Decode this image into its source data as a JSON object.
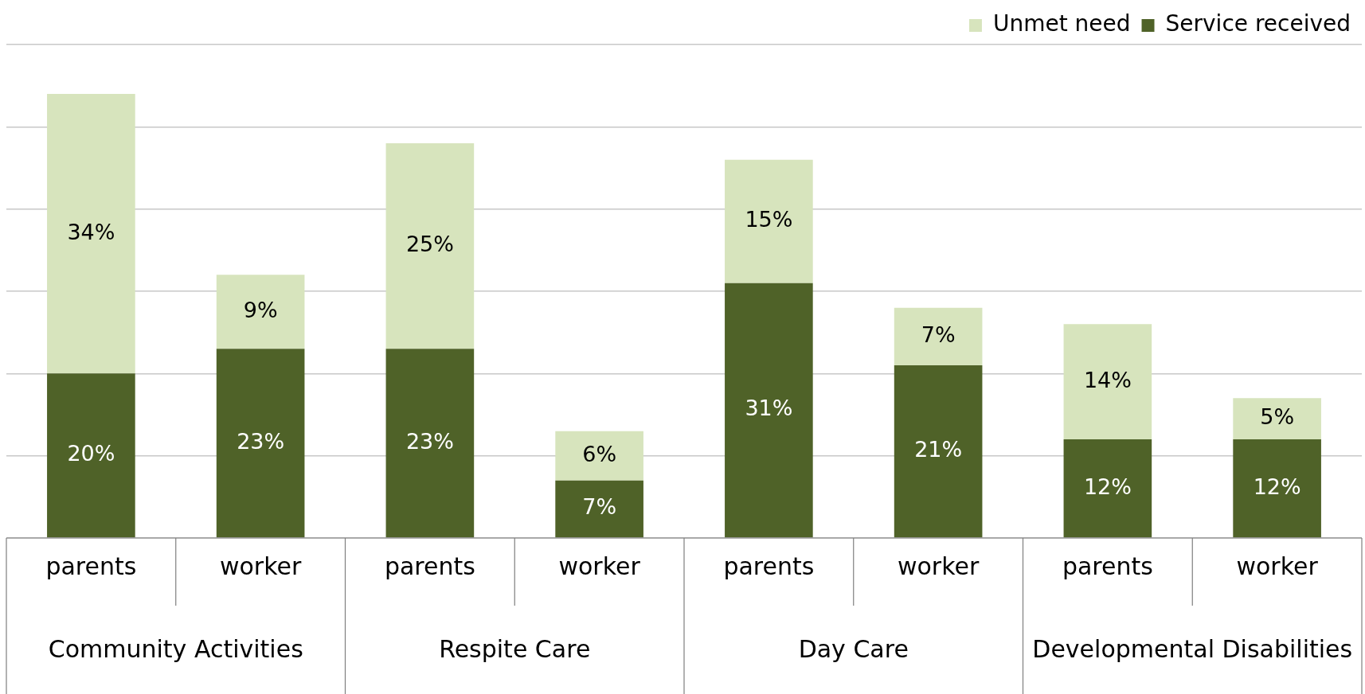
{
  "chart_data": {
    "type": "bar",
    "stacked": true,
    "categories": [
      "parents",
      "worker",
      "parents",
      "worker",
      "parents",
      "worker",
      "parents",
      "worker"
    ],
    "series": [
      {
        "name": "Service received",
        "color": "#4f6228",
        "values": [
          20,
          23,
          23,
          7,
          31,
          21,
          12,
          12
        ],
        "value_labels": [
          "20%",
          "23%",
          "23%",
          "7%",
          "31%",
          "21%",
          "12%",
          "12%"
        ]
      },
      {
        "name": "Unmet need",
        "color": "#d7e4bd",
        "values": [
          34,
          9,
          25,
          6,
          15,
          7,
          14,
          5
        ],
        "value_labels": [
          "34%",
          "9%",
          "25%",
          "6%",
          "15%",
          "7%",
          "14%",
          "5%"
        ]
      }
    ],
    "tick_labels": "x",
    "grid": "y",
    "legend": "top right",
    "annotations": [
      "Community Activities",
      "Respite Care",
      "Day Care",
      "Developmental Disabilities"
    ]
  }
}
